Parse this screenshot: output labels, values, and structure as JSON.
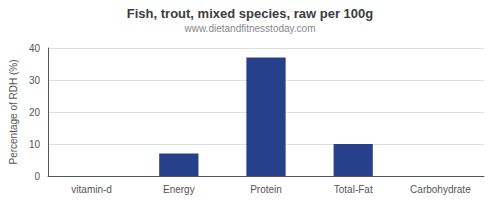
{
  "chart_data": {
    "type": "bar",
    "title": "Fish, trout, mixed species, raw per 100g",
    "subtitle": "www.dietandfitnesstoday.com",
    "categories": [
      "vitamin-d",
      "Energy",
      "Protein",
      "Total-Fat",
      "Carbohydrate"
    ],
    "values": [
      0,
      7,
      37,
      10,
      0
    ],
    "color": "#27408B",
    "ylabel": "Percentage of RDH (%)",
    "ylim": [
      0,
      40
    ],
    "yticks": [
      0,
      10,
      20,
      30,
      40
    ],
    "grid": true
  }
}
